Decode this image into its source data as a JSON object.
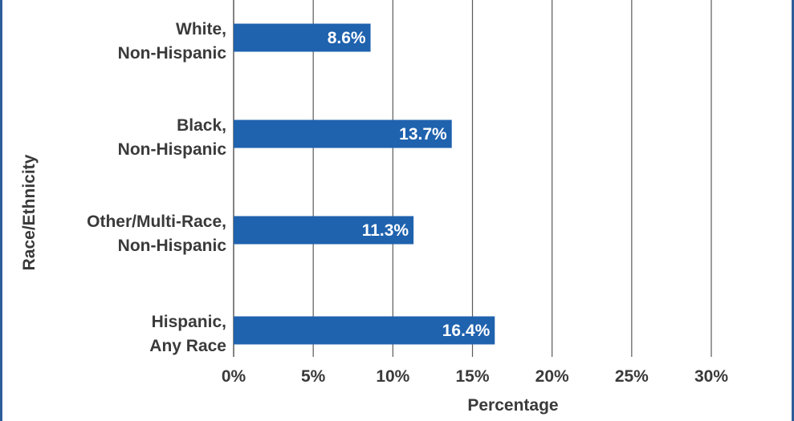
{
  "chart_data": {
    "type": "bar",
    "orientation": "horizontal",
    "categories": [
      [
        "White,",
        "Non-Hispanic"
      ],
      [
        "Black,",
        "Non-Hispanic"
      ],
      [
        "Other/Multi-Race,",
        "Non-Hispanic"
      ],
      [
        "Hispanic,",
        "Any Race"
      ]
    ],
    "values": [
      8.6,
      13.7,
      11.3,
      16.4
    ],
    "data_labels": [
      "8.6%",
      "13.7%",
      "11.3%",
      "16.4%"
    ],
    "xlabel": "Percentage",
    "ylabel": "Race/Ethnicity",
    "xlim": [
      0,
      35
    ],
    "xticks": [
      0,
      5,
      10,
      15,
      20,
      25,
      30
    ],
    "xtick_labels": [
      "0%",
      "5%",
      "10%",
      "15%",
      "20%",
      "25%",
      "30%"
    ],
    "grid": "vertical",
    "legend": "none",
    "colors": {
      "bar": "#1f62ae",
      "grid": "#5a5a5a",
      "text": "#3a3a3a",
      "frame": "#2e5d9a"
    }
  }
}
